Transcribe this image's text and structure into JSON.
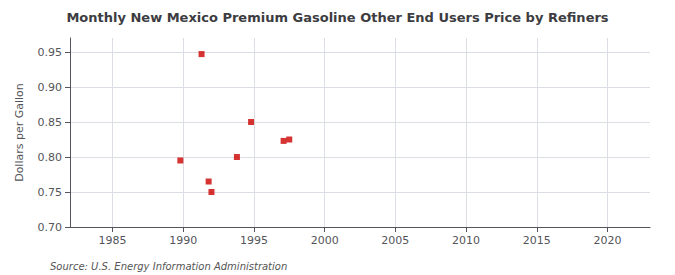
{
  "chart_data": {
    "type": "scatter",
    "title": "Monthly New Mexico Premium Gasoline Other End Users Price by Refiners",
    "ylabel": "Dollars per Gallon",
    "annotations": [
      "Source: U.S. Energy Information Administration"
    ],
    "x": [
      1989.8,
      1991.3,
      1991.8,
      1992.0,
      1993.8,
      1994.8,
      1997.1,
      1997.5
    ],
    "values": [
      0.795,
      0.947,
      0.765,
      0.75,
      0.8,
      0.85,
      0.823,
      0.825
    ],
    "color": "#cc0000",
    "marker": "square",
    "xlim": [
      1982,
      2023
    ],
    "xticks": [
      1985,
      1990,
      1995,
      2000,
      2005,
      2010,
      2015,
      2020
    ],
    "ylim": [
      0.7,
      0.97
    ],
    "yticks": [
      {
        "value": 0.7,
        "label": "0.70"
      },
      0.75,
      {
        "value": 0.8,
        "label": "0.80"
      },
      0.85,
      {
        "value": 0.9,
        "label": "0.90"
      },
      0.95
    ],
    "grid": true
  }
}
